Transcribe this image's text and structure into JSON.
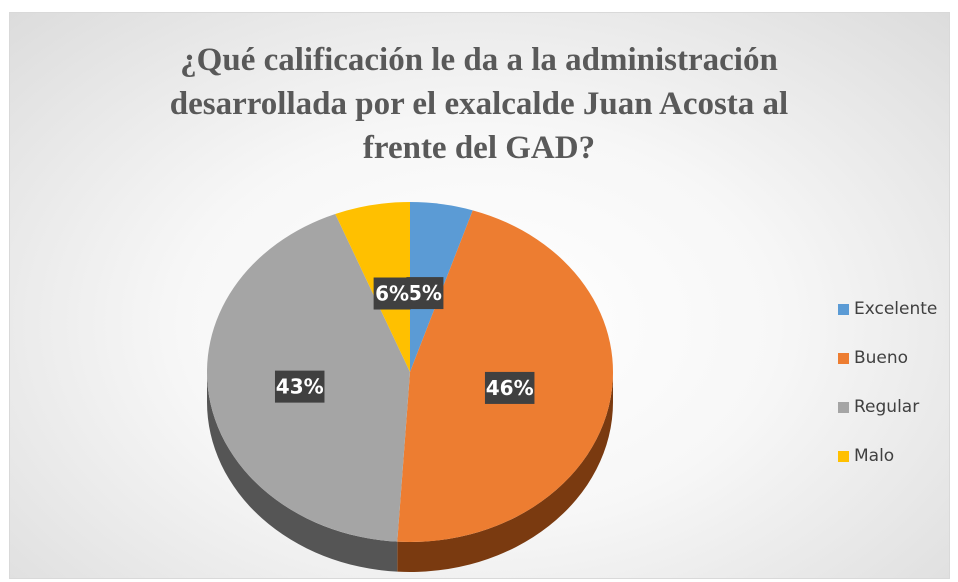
{
  "chart_data": {
    "type": "pie",
    "title": "¿Qué calificación le da a la administración\ndesarrollada por el exalcalde Juan Acosta al\nfrente del GAD?",
    "categories": [
      "Excelente",
      "Bueno",
      "Regular",
      "Malo"
    ],
    "values": [
      5,
      46,
      43,
      6
    ],
    "data_labels": [
      "5%",
      "46%",
      "43%",
      "6%"
    ],
    "colors": [
      "#5B9BD5",
      "#ED7D31",
      "#A5A5A5",
      "#FFC000"
    ],
    "side_colors": [
      "#2E5F8A",
      "#7A3A10",
      "#555555",
      "#8A6A00"
    ],
    "legend_position": "right",
    "style": "3d"
  }
}
